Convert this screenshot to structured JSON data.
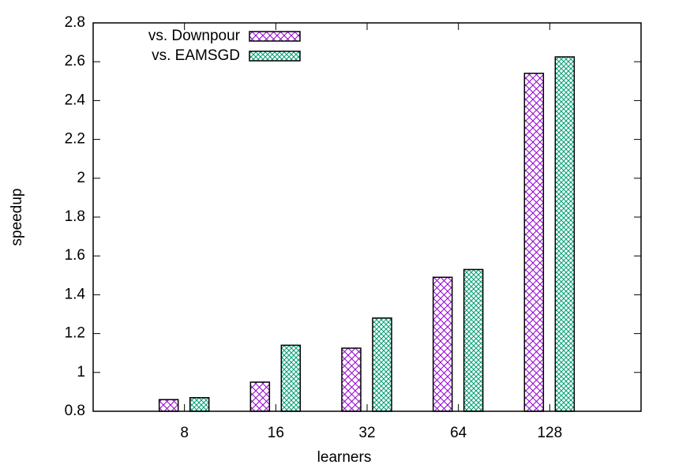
{
  "chart_data": {
    "type": "bar",
    "x_label": "learners",
    "y_label": "speedup",
    "categories": [
      "8",
      "16",
      "32",
      "64",
      "128"
    ],
    "series": [
      {
        "name": "vs. Downpour",
        "color": "#9400d3",
        "values": [
          0.86,
          0.95,
          1.125,
          1.49,
          2.54
        ]
      },
      {
        "name": "vs. EAMSGD",
        "color": "#009e73",
        "values": [
          0.87,
          1.14,
          1.28,
          1.53,
          2.625
        ]
      }
    ],
    "ylim": [
      0.8,
      2.8
    ],
    "yticks": [
      0.8,
      1,
      1.2,
      1.4,
      1.6,
      1.8,
      2,
      2.2,
      2.4,
      2.6,
      2.8
    ],
    "legend": "top-left"
  }
}
